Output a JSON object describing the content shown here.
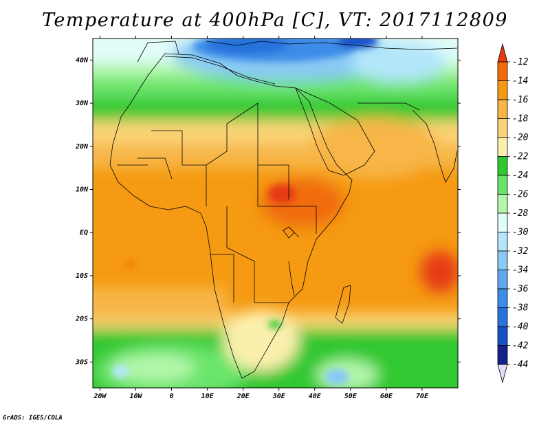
{
  "title": "Temperature at 400hPa [C], VT: 2017112809",
  "credit": "GrADS: IGES/COLA",
  "map": {
    "lon_range": [
      -22,
      80
    ],
    "lat_range": [
      -36,
      45
    ],
    "lat_ticks": [
      {
        "lat": 40,
        "label": "40N"
      },
      {
        "lat": 30,
        "label": "30N"
      },
      {
        "lat": 20,
        "label": "20N"
      },
      {
        "lat": 10,
        "label": "10N"
      },
      {
        "lat": 0,
        "label": "EQ"
      },
      {
        "lat": -10,
        "label": "10S"
      },
      {
        "lat": -20,
        "label": "20S"
      },
      {
        "lat": -30,
        "label": "30S"
      }
    ],
    "lon_ticks": [
      {
        "lon": -20,
        "label": "20W"
      },
      {
        "lon": -10,
        "label": "10W"
      },
      {
        "lon": 0,
        "label": "0"
      },
      {
        "lon": 10,
        "label": "10E"
      },
      {
        "lon": 20,
        "label": "20E"
      },
      {
        "lon": 30,
        "label": "30E"
      },
      {
        "lon": 40,
        "label": "40E"
      },
      {
        "lon": 50,
        "label": "50E"
      },
      {
        "lon": 60,
        "label": "60E"
      },
      {
        "lon": 70,
        "label": "70E"
      }
    ]
  },
  "colorbar": {
    "levels": [
      -12,
      -14,
      -16,
      -18,
      -20,
      -22,
      -24,
      -26,
      -28,
      -30,
      -32,
      -34,
      -36,
      -38,
      -40,
      -42,
      -44
    ],
    "labels": [
      "-12",
      "-14",
      "-16",
      "-18",
      "-20",
      "-22",
      "-24",
      "-26",
      "-28",
      "-30",
      "-32",
      "-34",
      "-36",
      "-38",
      "-40",
      "-42",
      "-44"
    ],
    "colors": [
      "#e53b12",
      "#f06c0a",
      "#f59a12",
      "#f7b646",
      "#fad374",
      "#fcefad",
      "#30c831",
      "#6ae46a",
      "#b3f7aa",
      "#e1fdf9",
      "#b3e6fa",
      "#8ac9f4",
      "#63a8ef",
      "#3d8ce8",
      "#2872dc",
      "#1850c6",
      "#15208a",
      "#e3dcf6"
    ]
  }
}
